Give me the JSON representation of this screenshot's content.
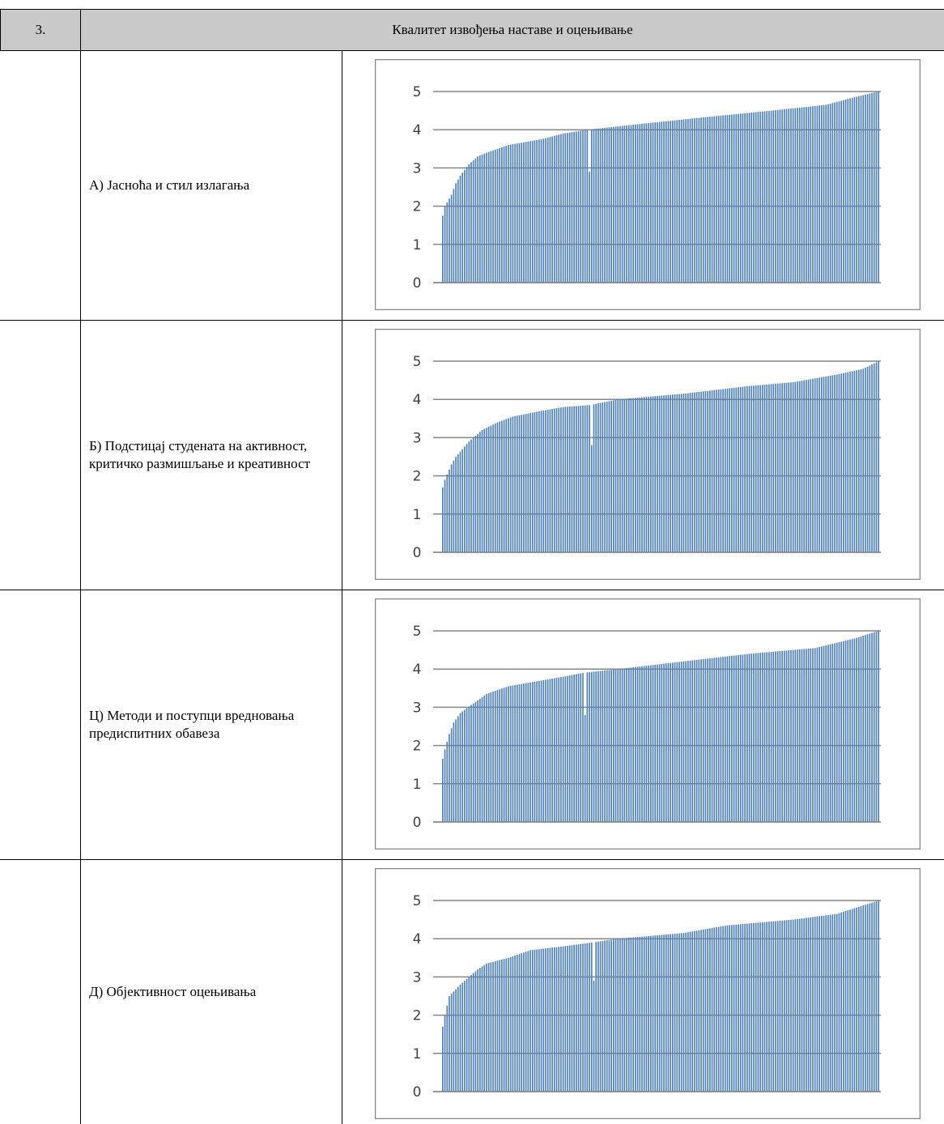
{
  "section": {
    "number": "3.",
    "title": "Квалитет извођења наставе и оцењивање"
  },
  "rows": [
    {
      "label": "А) Јасноћа и стил излагања",
      "chart_data": {
        "type": "bar",
        "ylim": [
          0,
          5
        ],
        "yticks": [
          0,
          1,
          2,
          3,
          4,
          5
        ],
        "grid": true,
        "bar_color": "#4f81bd",
        "count": 200,
        "dip": {
          "index": 67,
          "value": 2.9
        },
        "profile": [
          [
            0,
            1.75
          ],
          [
            1,
            2.0
          ],
          [
            4,
            2.3
          ],
          [
            6,
            2.6
          ],
          [
            8,
            2.8
          ],
          [
            12,
            3.1
          ],
          [
            16,
            3.3
          ],
          [
            20,
            3.4
          ],
          [
            30,
            3.6
          ],
          [
            45,
            3.75
          ],
          [
            55,
            3.9
          ],
          [
            66,
            4.0
          ],
          [
            90,
            4.15
          ],
          [
            115,
            4.3
          ],
          [
            150,
            4.5
          ],
          [
            175,
            4.65
          ],
          [
            188,
            4.85
          ],
          [
            199,
            5.0
          ]
        ]
      }
    },
    {
      "label": "Б) Подстицај студената на активност, критичко размишљање и креативност",
      "chart_data": {
        "type": "bar",
        "ylim": [
          0,
          5
        ],
        "yticks": [
          0,
          1,
          2,
          3,
          4,
          5
        ],
        "grid": true,
        "bar_color": "#4f81bd",
        "count": 200,
        "dip": {
          "index": 68,
          "value": 2.8
        },
        "profile": [
          [
            0,
            1.7
          ],
          [
            1,
            1.9
          ],
          [
            4,
            2.3
          ],
          [
            6,
            2.5
          ],
          [
            12,
            2.9
          ],
          [
            18,
            3.2
          ],
          [
            25,
            3.4
          ],
          [
            32,
            3.55
          ],
          [
            45,
            3.7
          ],
          [
            55,
            3.8
          ],
          [
            67,
            3.85
          ],
          [
            80,
            4.0
          ],
          [
            110,
            4.15
          ],
          [
            140,
            4.35
          ],
          [
            160,
            4.45
          ],
          [
            180,
            4.65
          ],
          [
            192,
            4.8
          ],
          [
            199,
            5.0
          ]
        ]
      }
    },
    {
      "label": "Ц) Методи и поступци вредновања предиспитних обавеза",
      "chart_data": {
        "type": "bar",
        "ylim": [
          0,
          5
        ],
        "yticks": [
          0,
          1,
          2,
          3,
          4,
          5
        ],
        "grid": true,
        "bar_color": "#4f81bd",
        "count": 200,
        "dip": {
          "index": 65,
          "value": 2.8
        },
        "profile": [
          [
            0,
            1.65
          ],
          [
            1,
            1.9
          ],
          [
            3,
            2.3
          ],
          [
            5,
            2.6
          ],
          [
            8,
            2.85
          ],
          [
            14,
            3.1
          ],
          [
            20,
            3.35
          ],
          [
            30,
            3.55
          ],
          [
            45,
            3.7
          ],
          [
            55,
            3.8
          ],
          [
            64,
            3.9
          ],
          [
            80,
            4.0
          ],
          [
            110,
            4.2
          ],
          [
            140,
            4.4
          ],
          [
            170,
            4.55
          ],
          [
            188,
            4.8
          ],
          [
            199,
            5.0
          ]
        ]
      }
    },
    {
      "label": "Д) Објективност оцењивања",
      "chart_data": {
        "type": "bar",
        "ylim": [
          0,
          5
        ],
        "yticks": [
          0,
          1,
          2,
          3,
          4,
          5
        ],
        "grid": true,
        "bar_color": "#4f81bd",
        "count": 200,
        "dip": {
          "index": 69,
          "value": 2.9
        },
        "profile": [
          [
            0,
            1.7
          ],
          [
            1,
            2.0
          ],
          [
            3,
            2.5
          ],
          [
            8,
            2.8
          ],
          [
            12,
            3.0
          ],
          [
            16,
            3.2
          ],
          [
            20,
            3.35
          ],
          [
            30,
            3.5
          ],
          [
            40,
            3.7
          ],
          [
            55,
            3.8
          ],
          [
            68,
            3.9
          ],
          [
            80,
            4.0
          ],
          [
            110,
            4.15
          ],
          [
            130,
            4.35
          ],
          [
            160,
            4.5
          ],
          [
            180,
            4.65
          ],
          [
            199,
            5.0
          ]
        ]
      }
    }
  ]
}
